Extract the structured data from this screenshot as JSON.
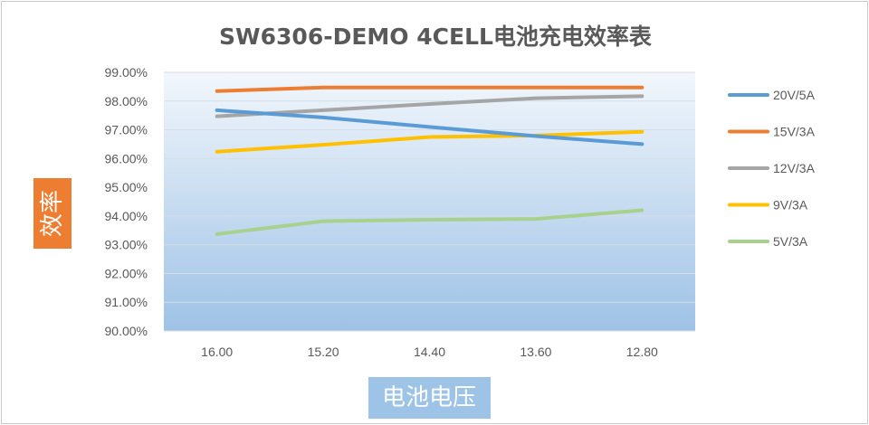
{
  "chart_data": {
    "type": "line",
    "title": "SW6306-DEMO 4CELL电池充电效率表",
    "xlabel": "电池电压",
    "ylabel": "效率",
    "categories": [
      "16.00",
      "15.20",
      "14.40",
      "13.60",
      "12.80"
    ],
    "y_ticks": [
      "90.00%",
      "91.00%",
      "92.00%",
      "93.00%",
      "94.00%",
      "95.00%",
      "96.00%",
      "97.00%",
      "98.00%",
      "99.00%"
    ],
    "ylim": [
      90,
      99
    ],
    "grid": true,
    "legend_position": "right",
    "series": [
      {
        "name": "20V/5A",
        "color": "#5b9bd5",
        "values": [
          97.68,
          97.43,
          97.1,
          96.78,
          96.5
        ]
      },
      {
        "name": "15V/3A",
        "color": "#ed7d31",
        "values": [
          98.35,
          98.47,
          98.47,
          98.47,
          98.47
        ]
      },
      {
        "name": "12V/3A",
        "color": "#a5a5a5",
        "values": [
          97.47,
          97.68,
          97.9,
          98.1,
          98.17
        ]
      },
      {
        "name": "9V/3A",
        "color": "#ffc000",
        "values": [
          96.24,
          96.48,
          96.75,
          96.8,
          96.93
        ]
      },
      {
        "name": "5V/3A",
        "color": "#a9d18e",
        "values": [
          93.37,
          93.82,
          93.87,
          93.9,
          94.2
        ]
      }
    ]
  },
  "colors": {
    "ylabel_box": "#ed7d31",
    "xlabel_box": "#9dc3e6",
    "plot_top": "#f2f7fc",
    "plot_bottom": "#9ec2e6"
  }
}
